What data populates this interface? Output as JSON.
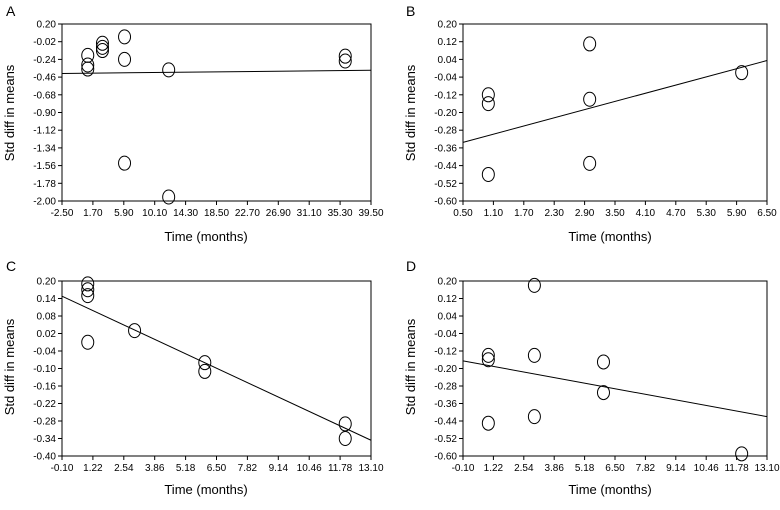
{
  "chart_data": [
    {
      "type": "scatter",
      "panel_label": "A",
      "xlabel": "Time (months)",
      "ylabel": "Std diff in means",
      "xlim": [
        -2.5,
        39.5
      ],
      "ylim": [
        -2.0,
        0.2
      ],
      "xticks": [
        "-2.50",
        "1.70",
        "5.90",
        "10.10",
        "14.30",
        "18.50",
        "22.70",
        "26.90",
        "31.10",
        "35.30",
        "39.50"
      ],
      "yticks": [
        "0.20",
        "-0.02",
        "-0.24",
        "-0.46",
        "-0.68",
        "-0.90",
        "-1.12",
        "-1.34",
        "-1.56",
        "-1.78",
        "-2.00"
      ],
      "points": [
        {
          "x": 1.0,
          "y": -0.19
        },
        {
          "x": 1.0,
          "y": -0.31
        },
        {
          "x": 1.0,
          "y": -0.36
        },
        {
          "x": 3.0,
          "y": -0.04
        },
        {
          "x": 3.0,
          "y": -0.09
        },
        {
          "x": 3.0,
          "y": -0.13
        },
        {
          "x": 6.0,
          "y": 0.04
        },
        {
          "x": 6.0,
          "y": -0.24
        },
        {
          "x": 6.0,
          "y": -1.53
        },
        {
          "x": 12.0,
          "y": -0.37
        },
        {
          "x": 12.0,
          "y": -1.95
        },
        {
          "x": 36.0,
          "y": -0.2
        },
        {
          "x": 36.0,
          "y": -0.26
        }
      ],
      "fit_line": [
        {
          "x": -2.5,
          "y": -0.415
        },
        {
          "x": 39.5,
          "y": -0.375
        }
      ]
    },
    {
      "type": "scatter",
      "panel_label": "B",
      "xlabel": "Time (months)",
      "ylabel": "Std diff in means",
      "xlim": [
        0.5,
        6.5
      ],
      "ylim": [
        -0.6,
        0.2
      ],
      "xticks": [
        "0.50",
        "1.10",
        "1.70",
        "2.30",
        "2.90",
        "3.50",
        "4.10",
        "4.70",
        "5.30",
        "5.90",
        "6.50"
      ],
      "yticks": [
        "0.20",
        "0.12",
        "0.04",
        "-0.04",
        "-0.12",
        "-0.20",
        "-0.28",
        "-0.36",
        "-0.44",
        "-0.52",
        "-0.60"
      ],
      "points": [
        {
          "x": 1.0,
          "y": -0.12
        },
        {
          "x": 1.0,
          "y": -0.16
        },
        {
          "x": 1.0,
          "y": -0.48
        },
        {
          "x": 3.0,
          "y": 0.11
        },
        {
          "x": 3.0,
          "y": -0.14
        },
        {
          "x": 3.0,
          "y": -0.43
        },
        {
          "x": 6.0,
          "y": -0.02
        }
      ],
      "fit_line": [
        {
          "x": 0.5,
          "y": -0.335
        },
        {
          "x": 6.5,
          "y": 0.035
        }
      ]
    },
    {
      "type": "scatter",
      "panel_label": "C",
      "xlabel": "Time (months)",
      "ylabel": "Std diff in means",
      "xlim": [
        -0.1,
        13.1
      ],
      "ylim": [
        -0.4,
        0.2
      ],
      "xticks": [
        "-0.10",
        "1.22",
        "2.54",
        "3.86",
        "5.18",
        "6.50",
        "7.82",
        "9.14",
        "10.46",
        "11.78",
        "13.10"
      ],
      "yticks": [
        "0.20",
        "0.14",
        "0.08",
        "0.02",
        "-0.04",
        "-0.10",
        "-0.16",
        "-0.22",
        "-0.28",
        "-0.34",
        "-0.40"
      ],
      "points": [
        {
          "x": 1.0,
          "y": 0.19
        },
        {
          "x": 1.0,
          "y": 0.17
        },
        {
          "x": 1.0,
          "y": 0.15
        },
        {
          "x": 1.0,
          "y": -0.01
        },
        {
          "x": 3.0,
          "y": 0.03
        },
        {
          "x": 6.0,
          "y": -0.08
        },
        {
          "x": 6.0,
          "y": -0.11
        },
        {
          "x": 12.0,
          "y": -0.29
        },
        {
          "x": 12.0,
          "y": -0.34
        }
      ],
      "fit_line": [
        {
          "x": -0.1,
          "y": 0.148
        },
        {
          "x": 13.1,
          "y": -0.346
        }
      ]
    },
    {
      "type": "scatter",
      "panel_label": "D",
      "xlabel": "Time (months)",
      "ylabel": "Std diff in means",
      "xlim": [
        -0.1,
        13.1
      ],
      "ylim": [
        -0.6,
        0.2
      ],
      "xticks": [
        "-0.10",
        "1.22",
        "2.54",
        "3.86",
        "5.18",
        "6.50",
        "7.82",
        "9.14",
        "10.46",
        "11.78",
        "13.10"
      ],
      "yticks": [
        "0.20",
        "0.12",
        "0.04",
        "-0.04",
        "-0.12",
        "-0.20",
        "-0.28",
        "-0.36",
        "-0.44",
        "-0.52",
        "-0.60"
      ],
      "points": [
        {
          "x": 1.0,
          "y": -0.14
        },
        {
          "x": 1.0,
          "y": -0.16
        },
        {
          "x": 1.0,
          "y": -0.45
        },
        {
          "x": 3.0,
          "y": 0.18
        },
        {
          "x": 3.0,
          "y": -0.14
        },
        {
          "x": 3.0,
          "y": -0.42
        },
        {
          "x": 6.0,
          "y": -0.17
        },
        {
          "x": 6.0,
          "y": -0.31
        },
        {
          "x": 12.0,
          "y": -0.59
        }
      ],
      "fit_line": [
        {
          "x": -0.1,
          "y": -0.165
        },
        {
          "x": 13.1,
          "y": -0.42
        }
      ]
    }
  ]
}
